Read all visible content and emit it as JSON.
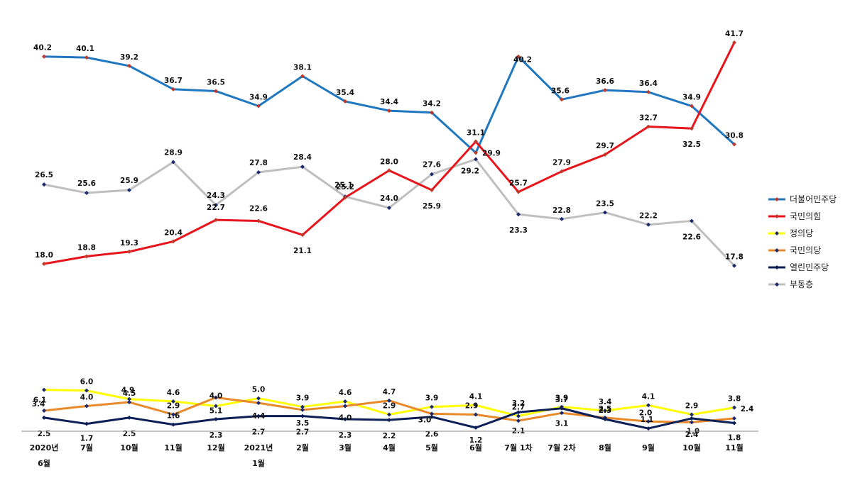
{
  "chart_data": {
    "type": "line",
    "categories": [
      [
        "2020년",
        "6월"
      ],
      [
        "7월"
      ],
      [
        "10월"
      ],
      [
        "11월"
      ],
      [
        "12월"
      ],
      [
        "2021년",
        "1월"
      ],
      [
        "2월"
      ],
      [
        "3월"
      ],
      [
        "4월"
      ],
      [
        "5월"
      ],
      [
        "6월"
      ],
      [
        "7월 1차"
      ],
      [
        "7월 2차"
      ],
      [
        "8월"
      ],
      [
        "9월"
      ],
      [
        "10월"
      ],
      [
        "11월"
      ]
    ],
    "series": [
      {
        "name": "더불어민주당",
        "color": "#1f77c0",
        "marker": "#c0392b",
        "values": [
          40.2,
          40.1,
          39.2,
          36.7,
          36.5,
          34.9,
          38.1,
          35.4,
          34.4,
          34.2,
          29.9,
          40.2,
          35.6,
          36.6,
          36.4,
          34.9,
          30.8
        ]
      },
      {
        "name": "국민의힘",
        "color": "#e8141c",
        "marker": "#c0392b",
        "values": [
          18.0,
          18.8,
          19.3,
          20.4,
          22.7,
          22.6,
          21.1,
          25.1,
          28.0,
          25.9,
          31.1,
          25.7,
          27.9,
          29.7,
          32.7,
          32.5,
          41.7
        ]
      },
      {
        "name": "정의당",
        "color": "#ffff00",
        "marker": "#1a2a6c",
        "values": [
          6.1,
          6.0,
          4.9,
          4.6,
          4.0,
          5.0,
          3.9,
          4.6,
          2.9,
          3.9,
          4.1,
          2.7,
          3.9,
          3.4,
          4.1,
          2.9,
          3.8
        ]
      },
      {
        "name": "국민의당",
        "color": "#e8892a",
        "marker": "#1a2a6c",
        "values": [
          3.4,
          4.0,
          4.5,
          2.9,
          5.1,
          4.4,
          3.5,
          4.0,
          4.7,
          3.0,
          2.9,
          2.1,
          3.1,
          2.5,
          2.0,
          1.9,
          2.4
        ]
      },
      {
        "name": "열린민주당",
        "color": "#0d1f57",
        "marker": "#0d1f57",
        "values": [
          2.5,
          1.7,
          2.5,
          1.6,
          2.3,
          2.7,
          2.7,
          2.3,
          2.2,
          2.6,
          1.2,
          3.2,
          3.7,
          2.3,
          1.1,
          2.4,
          1.8
        ]
      },
      {
        "name": "부동층",
        "color": "#bfbfbf",
        "marker": "#1a2a6c",
        "values": [
          26.5,
          25.6,
          25.9,
          28.9,
          24.3,
          27.8,
          28.4,
          25.2,
          24.0,
          27.6,
          29.2,
          23.3,
          22.8,
          23.5,
          22.2,
          22.6,
          17.8
        ]
      }
    ],
    "value_labels": [
      [
        "40.2",
        "40.1",
        "39.2",
        "36.7",
        "36.5",
        "34.9",
        "38.1",
        "35.4",
        "34.4",
        "34.2",
        "29.9",
        "40.2",
        "35.6",
        "36.6",
        "36.4",
        "34.9",
        "30.8"
      ],
      [
        "18.0",
        "18.8",
        "19.3",
        "20.4",
        "22.7",
        "22.6",
        "21.1",
        "25.1",
        "28.0",
        "25.9",
        "31.1",
        "25.7",
        "27.9",
        "29.7",
        "32.7",
        "32.5",
        "41.7"
      ],
      [
        "6.1",
        "6.0",
        "4.9",
        "4.6",
        "4.0",
        "5.0",
        "3.9",
        "4.6",
        "2.9",
        "3.9",
        "4.1",
        "2.7",
        "3.9",
        "3.4",
        "4.1",
        "2.9",
        "3.8"
      ],
      [
        "3.4",
        "4.0",
        "4.5",
        "2.9",
        "5.1",
        "4.4",
        "3.5",
        "4.0",
        "4.7",
        "3.0",
        "2.9",
        "2.1",
        "3.1",
        "2.5",
        "2.0",
        "1.9",
        "2.4"
      ],
      [
        "2.5",
        "1.7",
        "2.5",
        "1.6",
        "2.3",
        "2.7",
        "2.7",
        "2.3",
        "2.2",
        "2.6",
        "1.2",
        "3.2",
        "3.7",
        "2.3",
        "1.1",
        "2.4",
        "1.8"
      ],
      [
        "26.5",
        "25.6",
        "25.9",
        "28.9",
        "24.3",
        "27.8",
        "28.4",
        "25.2",
        "24.0",
        "27.6",
        "29.2",
        "23.3",
        "22.8",
        "23.5",
        "22.2",
        "22.6",
        "17.8"
      ]
    ],
    "axis": "broken",
    "upper_range": [
      15,
      45
    ],
    "lower_range": [
      0,
      7
    ],
    "legend_position": "right",
    "grid": false
  }
}
